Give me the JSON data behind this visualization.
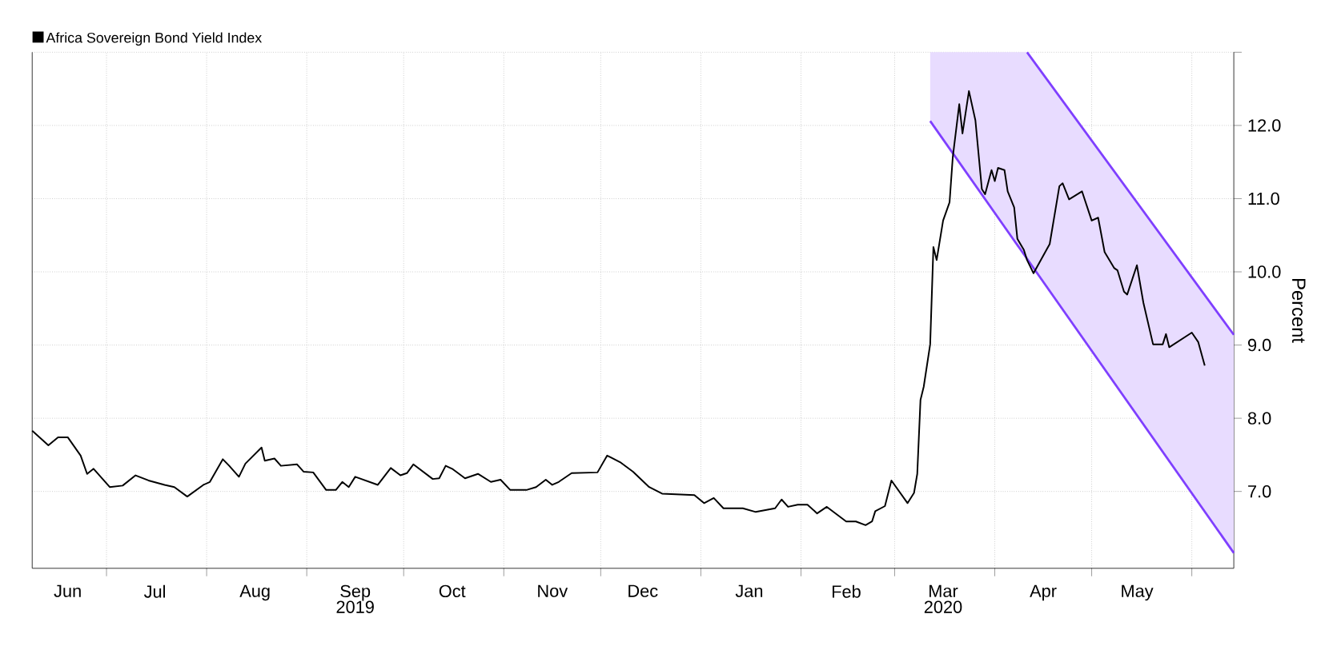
{
  "chart_data": {
    "type": "line",
    "ylabel": "Percent",
    "xlim": [
      "2019-06-08",
      "2020-06-14"
    ],
    "ylim": [
      5.95,
      13.0
    ],
    "xticks": [
      {
        "value": "2019-06-19",
        "label": "Jun"
      },
      {
        "value": "2019-07-16",
        "label": "Jul"
      },
      {
        "value": "2019-08-16",
        "label": "Aug"
      },
      {
        "value": "2019-09-16",
        "label": "Sep"
      },
      {
        "value": "2019-10-16",
        "label": "Oct"
      },
      {
        "value": "2019-11-16",
        "label": "Nov"
      },
      {
        "value": "2019-12-14",
        "label": "Dec"
      },
      {
        "value": "2020-01-16",
        "label": "Jan"
      },
      {
        "value": "2020-02-15",
        "label": "Feb"
      },
      {
        "value": "2020-03-16",
        "label": "Mar"
      },
      {
        "value": "2020-04-16",
        "label": "Apr"
      },
      {
        "value": "2020-05-15",
        "label": "May"
      },
      {
        "value": "2019-07-01",
        "label": null
      },
      {
        "value": "2019-08-01",
        "label": null
      },
      {
        "value": "2019-09-01",
        "label": null
      },
      {
        "value": "2019-10-01",
        "label": null
      },
      {
        "value": "2019-11-01",
        "label": null
      },
      {
        "value": "2019-12-01",
        "label": null
      },
      {
        "value": "2020-01-01",
        "label": null
      },
      {
        "value": "2020-02-01",
        "label": null
      },
      {
        "value": "2020-03-01",
        "label": null
      },
      {
        "value": "2020-04-01",
        "label": null
      },
      {
        "value": "2020-05-01",
        "label": null
      },
      {
        "value": "2020-06-01",
        "label": null
      }
    ],
    "yticks": [
      {
        "value": 7,
        "label": "7.0"
      },
      {
        "value": 8,
        "label": "8.0"
      },
      {
        "value": 9,
        "label": "9.0"
      },
      {
        "value": 10,
        "label": "10.0"
      },
      {
        "value": 11,
        "label": "11.0"
      },
      {
        "value": 12,
        "label": "12.0"
      },
      {
        "value": 13,
        "label": null
      }
    ],
    "grid": true,
    "legend": "top left",
    "marker": "none",
    "annotations": [
      "2019",
      "2020"
    ],
    "series": [
      {
        "name": "Africa Sovereign Bond Yield Index",
        "color": "#000000",
        "x": [
          "2019-06-08",
          "2019-06-13",
          "2019-06-16",
          "2019-06-19",
          "2019-06-23",
          "2019-06-25",
          "2019-06-27",
          "2019-07-02",
          "2019-07-06",
          "2019-07-10",
          "2019-07-14",
          "2019-07-19",
          "2019-07-22",
          "2019-07-26",
          "2019-07-31",
          "2019-08-02",
          "2019-08-06",
          "2019-08-08",
          "2019-08-11",
          "2019-08-13",
          "2019-08-18",
          "2019-08-19",
          "2019-08-22",
          "2019-08-24",
          "2019-08-29",
          "2019-08-31",
          "2019-09-03",
          "2019-09-07",
          "2019-09-10",
          "2019-09-12",
          "2019-09-14",
          "2019-09-16",
          "2019-09-23",
          "2019-09-27",
          "2019-09-30",
          "2019-10-02",
          "2019-10-04",
          "2019-10-10",
          "2019-10-12",
          "2019-10-14",
          "2019-10-16",
          "2019-10-20",
          "2019-10-24",
          "2019-10-28",
          "2019-10-31",
          "2019-11-03",
          "2019-11-08",
          "2019-11-11",
          "2019-11-14",
          "2019-11-16",
          "2019-11-18",
          "2019-11-22",
          "2019-11-30",
          "2019-12-03",
          "2019-12-07",
          "2019-12-11",
          "2019-12-16",
          "2019-12-20",
          "2019-12-30",
          "2020-01-02",
          "2020-01-05",
          "2020-01-08",
          "2020-01-14",
          "2020-01-18",
          "2020-01-24",
          "2020-01-26",
          "2020-01-28",
          "2020-01-31",
          "2020-02-03",
          "2020-02-06",
          "2020-02-09",
          "2020-02-15",
          "2020-02-18",
          "2020-02-21",
          "2020-02-23",
          "2020-02-24",
          "2020-02-27",
          "2020-02-29",
          "2020-03-05",
          "2020-03-07",
          "2020-03-08",
          "2020-03-09",
          "2020-03-10",
          "2020-03-12",
          "2020-03-13",
          "2020-03-14",
          "2020-03-16",
          "2020-03-18",
          "2020-03-19",
          "2020-03-21",
          "2020-03-22",
          "2020-03-24",
          "2020-03-26",
          "2020-03-28",
          "2020-03-29",
          "2020-03-31",
          "2020-04-01",
          "2020-04-02",
          "2020-04-04",
          "2020-04-05",
          "2020-04-07",
          "2020-04-08",
          "2020-04-10",
          "2020-04-11",
          "2020-04-13",
          "2020-04-17",
          "2020-04-18",
          "2020-04-21",
          "2020-04-22",
          "2020-04-24",
          "2020-04-28",
          "2020-05-01",
          "2020-05-03",
          "2020-05-05",
          "2020-05-08",
          "2020-05-09",
          "2020-05-11",
          "2020-05-12",
          "2020-05-15",
          "2020-05-17",
          "2020-05-20",
          "2020-05-23",
          "2020-05-24",
          "2020-05-25",
          "2020-06-01",
          "2020-06-03",
          "2020-06-05"
        ],
        "values": [
          7.83,
          7.63,
          7.74,
          7.74,
          7.49,
          7.24,
          7.31,
          7.06,
          7.08,
          7.22,
          7.15,
          7.09,
          7.06,
          6.93,
          7.09,
          7.13,
          7.44,
          7.35,
          7.2,
          7.38,
          7.6,
          7.42,
          7.45,
          7.35,
          7.37,
          7.27,
          7.26,
          7.02,
          7.02,
          7.13,
          7.06,
          7.2,
          7.09,
          7.32,
          7.22,
          7.25,
          7.37,
          7.17,
          7.18,
          7.35,
          7.31,
          7.18,
          7.24,
          7.13,
          7.16,
          7.02,
          7.02,
          7.06,
          7.16,
          7.09,
          7.13,
          7.25,
          7.26,
          7.49,
          7.4,
          7.27,
          7.06,
          6.97,
          6.95,
          6.84,
          6.91,
          6.77,
          6.77,
          6.72,
          6.77,
          6.89,
          6.79,
          6.82,
          6.82,
          6.7,
          6.79,
          6.59,
          6.59,
          6.54,
          6.59,
          6.73,
          6.8,
          7.15,
          6.84,
          6.98,
          7.24,
          8.25,
          8.43,
          9.01,
          10.34,
          10.16,
          10.7,
          10.95,
          11.57,
          12.29,
          11.89,
          12.47,
          12.07,
          11.13,
          11.06,
          11.39,
          11.24,
          11.42,
          11.39,
          11.1,
          10.88,
          10.45,
          10.3,
          10.16,
          9.98,
          10.3,
          10.38,
          11.17,
          11.21,
          10.99,
          11.1,
          10.7,
          10.74,
          10.27,
          10.05,
          10.02,
          9.73,
          9.69,
          10.09,
          9.58,
          9.01,
          9.01,
          9.15,
          8.97,
          9.17,
          9.04,
          8.72
        ]
      },
      {
        "color": "#7f3fff",
        "x": [
          "2020-03-12",
          "2020-06-14"
        ],
        "values": [
          12.06,
          6.16
        ]
      },
      {
        "color": "#7f3fff",
        "x": [
          "2020-03-12",
          "2020-04-11",
          "2020-06-14"
        ],
        "values": [
          null,
          13.0,
          9.14
        ],
        "lower": [
          12.06,
          10.18,
          6.16
        ],
        "upper": [
          13.0,
          13.0,
          9.14
        ]
      }
    ]
  }
}
